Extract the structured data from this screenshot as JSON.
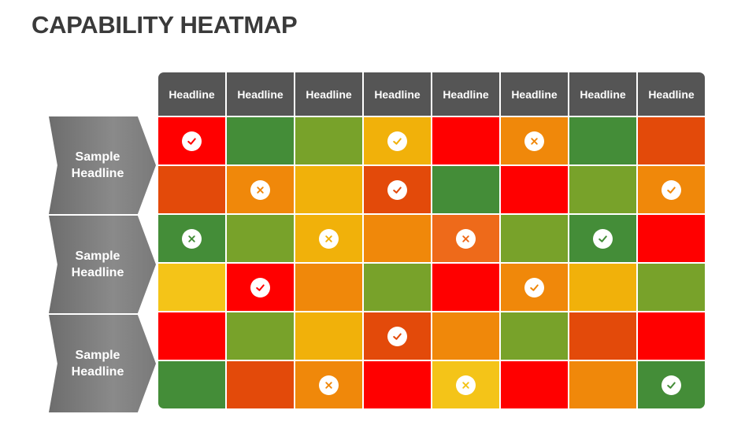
{
  "title": "CAPABILITY HEATMAP",
  "column_headers": [
    "Headline",
    "Headline",
    "Headline",
    "Headline",
    "Headline",
    "Headline",
    "Headline",
    "Headline"
  ],
  "row_groups": [
    {
      "label_line1": "Sample",
      "label_line2": "Headline"
    },
    {
      "label_line1": "Sample",
      "label_line2": "Headline"
    },
    {
      "label_line1": "Sample",
      "label_line2": "Headline"
    }
  ],
  "palette": {
    "red": "#ff0000",
    "dark_orange": "#e34a0a",
    "orange": "#f0880a",
    "burnt_orange": "#ee6a1a",
    "amber": "#f1b10a",
    "yellow": "#f4c418",
    "yellow_green": "#78a22a",
    "green": "#448d38",
    "header_gray": "#555555",
    "label_gray": "#7a7a7a"
  },
  "cells": [
    [
      {
        "color": "red",
        "icon": "check-icon"
      },
      {
        "color": "green",
        "icon": ""
      },
      {
        "color": "yellow_green",
        "icon": ""
      },
      {
        "color": "amber",
        "icon": "check-icon"
      },
      {
        "color": "red",
        "icon": ""
      },
      {
        "color": "orange",
        "icon": "cross-icon"
      },
      {
        "color": "green",
        "icon": ""
      },
      {
        "color": "dark_orange",
        "icon": ""
      }
    ],
    [
      {
        "color": "dark_orange",
        "icon": ""
      },
      {
        "color": "orange",
        "icon": "cross-icon"
      },
      {
        "color": "amber",
        "icon": ""
      },
      {
        "color": "dark_orange",
        "icon": "check-icon"
      },
      {
        "color": "green",
        "icon": ""
      },
      {
        "color": "red",
        "icon": ""
      },
      {
        "color": "yellow_green",
        "icon": ""
      },
      {
        "color": "orange",
        "icon": "check-icon"
      }
    ],
    [
      {
        "color": "green",
        "icon": "cross-icon"
      },
      {
        "color": "yellow_green",
        "icon": ""
      },
      {
        "color": "amber",
        "icon": "cross-icon"
      },
      {
        "color": "orange",
        "icon": ""
      },
      {
        "color": "burnt_orange",
        "icon": "cross-icon"
      },
      {
        "color": "yellow_green",
        "icon": ""
      },
      {
        "color": "green",
        "icon": "check-icon"
      },
      {
        "color": "red",
        "icon": ""
      }
    ],
    [
      {
        "color": "yellow",
        "icon": ""
      },
      {
        "color": "red",
        "icon": "check-icon"
      },
      {
        "color": "orange",
        "icon": ""
      },
      {
        "color": "yellow_green",
        "icon": ""
      },
      {
        "color": "red",
        "icon": ""
      },
      {
        "color": "orange",
        "icon": "check-icon"
      },
      {
        "color": "amber",
        "icon": ""
      },
      {
        "color": "yellow_green",
        "icon": ""
      }
    ],
    [
      {
        "color": "red",
        "icon": ""
      },
      {
        "color": "yellow_green",
        "icon": ""
      },
      {
        "color": "amber",
        "icon": ""
      },
      {
        "color": "dark_orange",
        "icon": "check-icon"
      },
      {
        "color": "orange",
        "icon": ""
      },
      {
        "color": "yellow_green",
        "icon": ""
      },
      {
        "color": "dark_orange",
        "icon": ""
      },
      {
        "color": "red",
        "icon": ""
      }
    ],
    [
      {
        "color": "green",
        "icon": ""
      },
      {
        "color": "dark_orange",
        "icon": ""
      },
      {
        "color": "orange",
        "icon": "cross-icon"
      },
      {
        "color": "red",
        "icon": ""
      },
      {
        "color": "yellow",
        "icon": "cross-icon"
      },
      {
        "color": "red",
        "icon": ""
      },
      {
        "color": "orange",
        "icon": ""
      },
      {
        "color": "green",
        "icon": "check-icon"
      }
    ]
  ]
}
